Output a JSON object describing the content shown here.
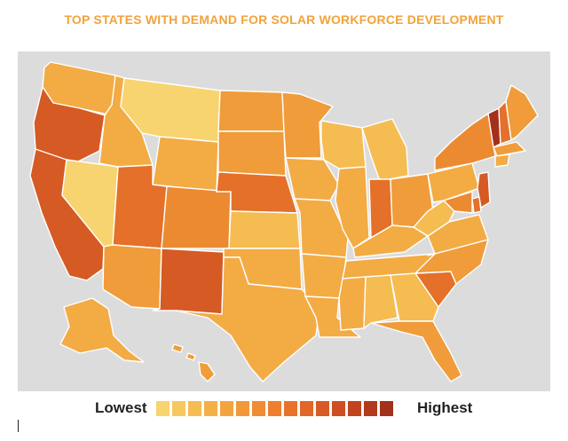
{
  "title": "TOP STATES WITH DEMAND FOR SOLAR WORKFORCE DEVELOPMENT",
  "legend": {
    "low_label": "Lowest",
    "high_label": "Highest",
    "scale_colors": [
      "#f7d46f",
      "#f6c860",
      "#f5bc52",
      "#f4b048",
      "#f3a440",
      "#f29839",
      "#f08c34",
      "#ed7f2f",
      "#e9722b",
      "#e26628",
      "#d95a24",
      "#cf4e21",
      "#c2431e",
      "#b3391c",
      "#a3301b"
    ]
  },
  "palette": {
    "lightest": "#f7d46f",
    "light": "#f5bc52",
    "mid_light": "#f3ab44",
    "mid": "#f09c3a",
    "mid_dark": "#ec8a31",
    "dark": "#e4702a",
    "darker": "#d65a23",
    "darkest": "#a3301b"
  },
  "states": [
    {
      "name": "Washington",
      "level": "mid_light"
    },
    {
      "name": "Oregon",
      "level": "darker"
    },
    {
      "name": "California",
      "level": "darker"
    },
    {
      "name": "Nevada",
      "level": "lightest"
    },
    {
      "name": "Idaho",
      "level": "mid_light"
    },
    {
      "name": "Montana",
      "level": "lightest"
    },
    {
      "name": "Wyoming",
      "level": "mid_light"
    },
    {
      "name": "Utah",
      "level": "dark"
    },
    {
      "name": "Arizona",
      "level": "mid"
    },
    {
      "name": "Colorado",
      "level": "mid_dark"
    },
    {
      "name": "New Mexico",
      "level": "darker"
    },
    {
      "name": "North Dakota",
      "level": "mid"
    },
    {
      "name": "South Dakota",
      "level": "mid"
    },
    {
      "name": "Nebraska",
      "level": "dark"
    },
    {
      "name": "Kansas",
      "level": "light"
    },
    {
      "name": "Oklahoma",
      "level": "mid_light"
    },
    {
      "name": "Texas",
      "level": "mid_light"
    },
    {
      "name": "Minnesota",
      "level": "mid"
    },
    {
      "name": "Iowa",
      "level": "mid_light"
    },
    {
      "name": "Missouri",
      "level": "mid_light"
    },
    {
      "name": "Arkansas",
      "level": "mid_light"
    },
    {
      "name": "Louisiana",
      "level": "mid_light"
    },
    {
      "name": "Wisconsin",
      "level": "light"
    },
    {
      "name": "Illinois",
      "level": "mid_light"
    },
    {
      "name": "Michigan",
      "level": "light"
    },
    {
      "name": "Indiana",
      "level": "dark"
    },
    {
      "name": "Ohio",
      "level": "mid"
    },
    {
      "name": "Kentucky",
      "level": "mid_light"
    },
    {
      "name": "Tennessee",
      "level": "mid_light"
    },
    {
      "name": "Mississippi",
      "level": "mid_light"
    },
    {
      "name": "Alabama",
      "level": "light"
    },
    {
      "name": "Georgia",
      "level": "light"
    },
    {
      "name": "Florida",
      "level": "mid"
    },
    {
      "name": "South Carolina",
      "level": "dark"
    },
    {
      "name": "North Carolina",
      "level": "mid"
    },
    {
      "name": "Virginia",
      "level": "mid_light"
    },
    {
      "name": "West Virginia",
      "level": "light"
    },
    {
      "name": "Pennsylvania",
      "level": "mid_light"
    },
    {
      "name": "New York",
      "level": "mid_dark"
    },
    {
      "name": "Vermont",
      "level": "darkest"
    },
    {
      "name": "New Hampshire",
      "level": "dark"
    },
    {
      "name": "Maine",
      "level": "mid"
    },
    {
      "name": "Massachusetts",
      "level": "mid"
    },
    {
      "name": "Connecticut",
      "level": "mid_light"
    },
    {
      "name": "New Jersey",
      "level": "darker"
    },
    {
      "name": "Delaware",
      "level": "dark"
    },
    {
      "name": "Maryland",
      "level": "mid_dark"
    },
    {
      "name": "Alaska",
      "level": "mid_light"
    },
    {
      "name": "Hawaii",
      "level": "mid"
    }
  ]
}
